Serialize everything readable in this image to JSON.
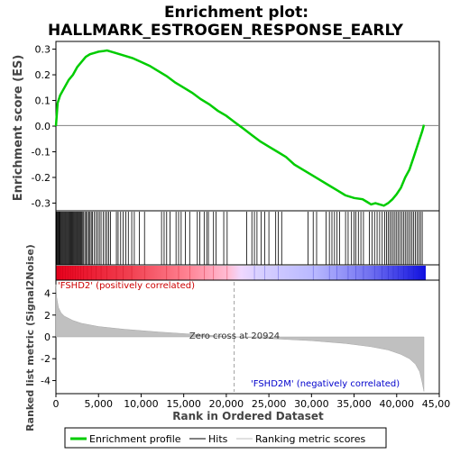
{
  "chart_data": {
    "type": "line",
    "title_line1": "Enrichment plot:",
    "title_line2": "HALLMARK_ESTROGEN_RESPONSE_EARLY",
    "top_panel": {
      "ylabel": "Enrichment score (ES)",
      "ylim": [
        -0.33,
        0.33
      ],
      "yticks": [
        "0.3",
        "0.2",
        "0.1",
        "0.0",
        "-0.1",
        "-0.2",
        "-0.3"
      ],
      "ytick_values": [
        0.3,
        0.2,
        0.1,
        0.0,
        -0.1,
        -0.2,
        -0.3
      ],
      "series": [
        {
          "name": "Enrichment profile",
          "color": "#00cc00",
          "x": [
            0,
            200,
            500,
            1000,
            1500,
            2000,
            2500,
            3000,
            3500,
            4000,
            4500,
            5000,
            5500,
            6000,
            6500,
            7000,
            8000,
            9000,
            10000,
            11000,
            12000,
            13000,
            14000,
            15000,
            16000,
            17000,
            18000,
            19000,
            20000,
            21000,
            22000,
            23000,
            24000,
            25000,
            26000,
            27000,
            28000,
            29000,
            30000,
            31000,
            32000,
            33000,
            34000,
            35000,
            36000,
            36500,
            37000,
            37500,
            38000,
            38500,
            39000,
            39500,
            40000,
            40500,
            41000,
            41500,
            42000,
            42500,
            43000,
            43200
          ],
          "y": [
            0.0,
            0.09,
            0.12,
            0.15,
            0.18,
            0.2,
            0.23,
            0.25,
            0.27,
            0.28,
            0.285,
            0.29,
            0.292,
            0.295,
            0.29,
            0.285,
            0.275,
            0.265,
            0.25,
            0.235,
            0.215,
            0.195,
            0.17,
            0.15,
            0.13,
            0.105,
            0.085,
            0.06,
            0.04,
            0.015,
            -0.01,
            -0.035,
            -0.06,
            -0.08,
            -0.1,
            -0.12,
            -0.15,
            -0.17,
            -0.19,
            -0.21,
            -0.23,
            -0.25,
            -0.27,
            -0.28,
            -0.285,
            -0.295,
            -0.305,
            -0.3,
            -0.305,
            -0.31,
            -0.3,
            -0.285,
            -0.265,
            -0.24,
            -0.2,
            -0.17,
            -0.12,
            -0.07,
            -0.02,
            0.005
          ]
        }
      ]
    },
    "hits_panel": {
      "series_name": "Hits",
      "hit_positions": [
        30,
        90,
        160,
        240,
        330,
        420,
        500,
        600,
        700,
        800,
        900,
        1000,
        1100,
        1200,
        1300,
        1400,
        1500,
        1600,
        1700,
        1800,
        1900,
        2000,
        2100,
        2200,
        2300,
        2400,
        2500,
        2600,
        2700,
        2800,
        2900,
        3000,
        3100,
        3250,
        3400,
        3550,
        3700,
        3850,
        4000,
        4150,
        4300,
        4500,
        4700,
        4900,
        5100,
        5300,
        5550,
        5800,
        6000,
        6200,
        6400,
        7100,
        7300,
        7600,
        7900,
        8200,
        8500,
        8900,
        9200,
        9800,
        10400,
        12400,
        12700,
        13000,
        13400,
        14100,
        14400,
        14700,
        15200,
        15700,
        16600,
        16900,
        17400,
        17700,
        17900,
        18500,
        18800,
        19700,
        20100,
        22400,
        23000,
        23300,
        23600,
        24100,
        24500,
        25000,
        25800,
        26100,
        26500,
        29600,
        30200,
        30600,
        31700,
        32100,
        32400,
        32700,
        33000,
        33300,
        34000,
        34300,
        34700,
        35000,
        35200,
        35500,
        35800,
        36100,
        36800,
        37100,
        37400,
        37700,
        38000,
        38300,
        38600,
        38800,
        39000,
        39200,
        39400,
        39600,
        39800,
        40000,
        40200,
        40400,
        40600,
        40800,
        41000,
        41200,
        41400,
        41600,
        41800,
        42000,
        42200,
        42400,
        42600,
        42800,
        43000
      ]
    },
    "metric_panel": {
      "ylabel": "Ranked list metric (Signal2Noise)",
      "ylim": [
        -5.2,
        5.2
      ],
      "yticks": [
        "4",
        "2",
        "0",
        "-2",
        "-4"
      ],
      "ytick_values": [
        4,
        2,
        0,
        -2,
        -4
      ],
      "series_name": "Ranking metric scores",
      "x": [
        0,
        100,
        300,
        600,
        1000,
        2000,
        3000,
        5000,
        8000,
        12000,
        16000,
        20924,
        25000,
        30000,
        34000,
        37000,
        39000,
        40500,
        41500,
        42200,
        42700,
        43000,
        43200
      ],
      "y": [
        4.8,
        3.6,
        2.7,
        2.2,
        1.9,
        1.5,
        1.25,
        0.95,
        0.7,
        0.45,
        0.25,
        0.0,
        -0.15,
        -0.35,
        -0.6,
        -0.9,
        -1.2,
        -1.6,
        -2.0,
        -2.5,
        -3.2,
        -4.2,
        -5.0
      ],
      "zero_cross_label": "Zero cross at 20924",
      "zero_cross_value": 20924,
      "positive_label": "'FSHD2' (positively correlated)",
      "negative_label": "'FSHD2M' (negatively correlated)"
    },
    "xlabel": "Rank in Ordered Dataset",
    "xlim": [
      0,
      45000
    ],
    "xticks": [
      "0",
      "5,000",
      "10,000",
      "15,000",
      "20,000",
      "25,000",
      "30,000",
      "35,000",
      "40,000",
      "45,000"
    ],
    "xtick_values": [
      0,
      5000,
      10000,
      15000,
      20000,
      25000,
      30000,
      35000,
      40000,
      45000
    ],
    "legend": {
      "placement": "bottom",
      "entries": [
        "Enrichment profile",
        "Hits",
        "Ranking metric scores"
      ]
    },
    "colors": {
      "profile": "#00cc00",
      "hits": "#000000",
      "metric_fill": "#c0c0c0",
      "positive_text": "#cc0000",
      "negative_text": "#0000cc",
      "bar_red": "#ff0000",
      "bar_blue": "#0000ff"
    }
  }
}
